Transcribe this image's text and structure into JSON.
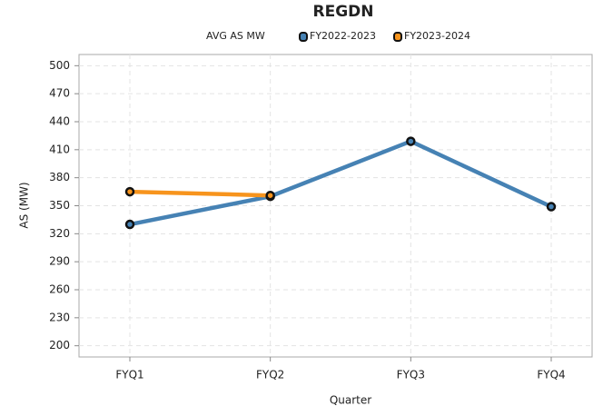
{
  "chart_data": {
    "type": "line",
    "title": "REGDN",
    "legend_title": "AVG AS MW",
    "x_label": "Quarter",
    "y_label": "AS (MW)",
    "categories": [
      "FYQ1",
      "FYQ2",
      "FYQ3",
      "FYQ4"
    ],
    "series": [
      {
        "name": "FY2022-2023",
        "color": "#4682b4",
        "values": [
          330,
          360,
          419,
          349
        ]
      },
      {
        "name": "FY2023-2024",
        "color": "#f7941d",
        "values": [
          365,
          361,
          null,
          null
        ]
      }
    ],
    "ylim": [
      188,
      512
    ],
    "yticks": [
      200,
      230,
      260,
      290,
      320,
      350,
      380,
      410,
      440,
      470,
      500
    ],
    "grid": true
  }
}
